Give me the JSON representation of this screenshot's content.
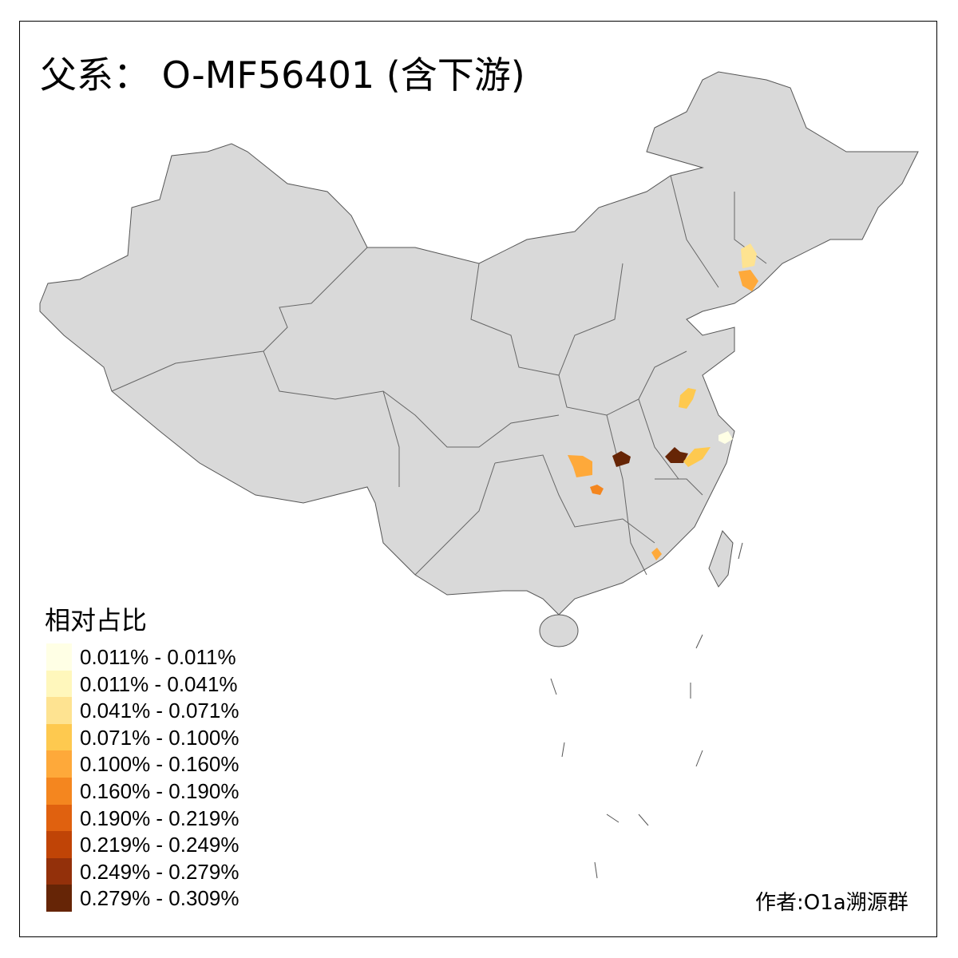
{
  "title": "父系： O-MF56401 (含下游)",
  "legend": {
    "title": "相对占比",
    "items": [
      {
        "label": "0.011% - 0.011%",
        "color": "#ffffe5"
      },
      {
        "label": "0.011% - 0.041%",
        "color": "#fff7bc"
      },
      {
        "label": "0.041% - 0.071%",
        "color": "#fee391"
      },
      {
        "label": "0.071% - 0.100%",
        "color": "#fec94f"
      },
      {
        "label": "0.100% - 0.160%",
        "color": "#fea93a"
      },
      {
        "label": "0.160% - 0.190%",
        "color": "#f4861f"
      },
      {
        "label": "0.190% - 0.219%",
        "color": "#e0610f"
      },
      {
        "label": "0.219% - 0.249%",
        "color": "#c04406"
      },
      {
        "label": "0.249% - 0.279%",
        "color": "#93300a"
      },
      {
        "label": "0.279% - 0.309%",
        "color": "#662506"
      }
    ]
  },
  "map": {
    "land_color": "#d9d9d9",
    "border_color": "#555555",
    "no_data_color": "#d9d9d9"
  },
  "author": "作者:O1a溯源群"
}
